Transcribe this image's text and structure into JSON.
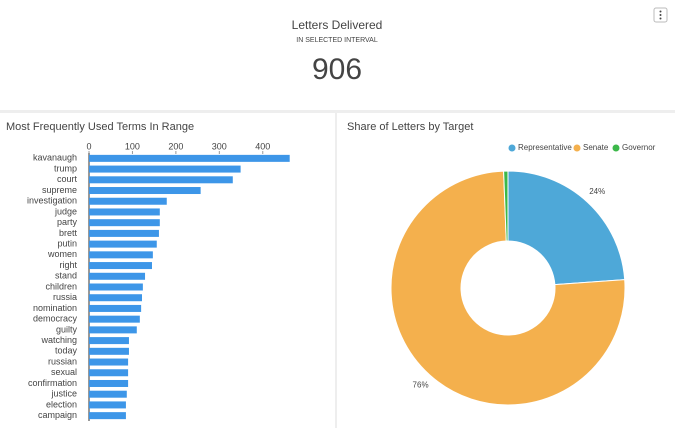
{
  "kpi": {
    "title": "Letters Delivered",
    "subtitle": "IN SELECTED INTERVAL",
    "value": 906
  },
  "chart_data": [
    {
      "type": "hbar",
      "title": "Most Frequently Used Terms In Range",
      "color": "#3d96e8",
      "categories": [
        "kavanaugh",
        "trump",
        "court",
        "supreme",
        "investigation",
        "judge",
        "party",
        "brett",
        "putin",
        "women",
        "right",
        "stand",
        "children",
        "russia",
        "nomination",
        "democracy",
        "guilty",
        "watching",
        "today",
        "russian",
        "sexual",
        "confirmation",
        "justice",
        "election",
        "campaign"
      ],
      "values": [
        462,
        349,
        331,
        257,
        179,
        163,
        163,
        161,
        156,
        147,
        145,
        129,
        124,
        122,
        120,
        117,
        110,
        92,
        92,
        90,
        90,
        90,
        87,
        85,
        85
      ],
      "xlim": [
        0,
        465
      ],
      "xticks": [
        0,
        100,
        200,
        300,
        400
      ]
    },
    {
      "type": "donut",
      "title": "Share of Letters by Target",
      "series": [
        {
          "name": "Representative",
          "color": "#4ea8d8"
        },
        {
          "name": "Senate",
          "color": "#f4b04d"
        },
        {
          "name": "Governor",
          "color": "#3cb84a"
        }
      ],
      "values": [
        24,
        76,
        0.6
      ],
      "value_labels": [
        "24%",
        "76%",
        null
      ],
      "legend": "top-right"
    }
  ]
}
